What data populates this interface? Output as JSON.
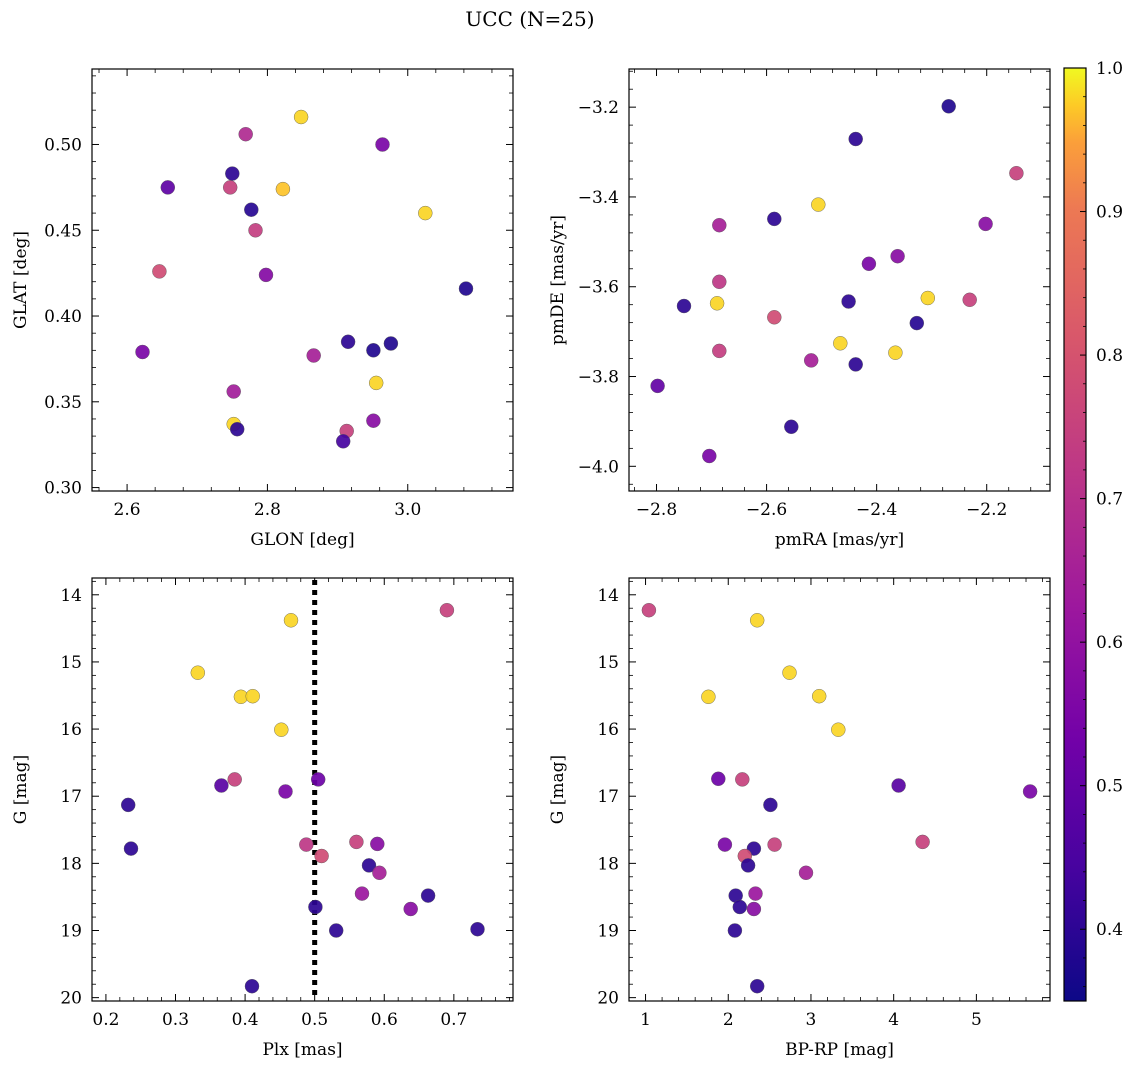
{
  "figure": {
    "title": "UCC (N=25)"
  },
  "colorbar": {
    "min": 0.35,
    "max": 1.0,
    "ticks": [
      0.4,
      0.5,
      0.6,
      0.7,
      0.8,
      0.9,
      1.0
    ],
    "tick_labels": [
      "0.4",
      "0.5",
      "0.6",
      "0.7",
      "0.8",
      "0.9",
      "1.0"
    ],
    "colormap": "plasma"
  },
  "chart_data": [
    {
      "type": "scatter",
      "id": "glon-glat",
      "xlabel": "GLON [deg]",
      "ylabel": "GLAT [deg]",
      "xlim": [
        2.55,
        3.15
      ],
      "ylim": [
        0.298,
        0.544
      ],
      "xticks": [
        2.6,
        2.8,
        3.0
      ],
      "xtick_labels": [
        "2.6",
        "2.8",
        "3.0"
      ],
      "yticks": [
        0.3,
        0.35,
        0.4,
        0.45,
        0.5
      ],
      "ytick_labels": [
        "0.30",
        "0.35",
        "0.40",
        "0.45",
        "0.50"
      ],
      "y_inverted": false,
      "points": [
        {
          "x": 2.848,
          "y": 0.516,
          "c": 0.98
        },
        {
          "x": 2.769,
          "y": 0.506,
          "c": 0.68
        },
        {
          "x": 2.964,
          "y": 0.5,
          "c": 0.55
        },
        {
          "x": 2.75,
          "y": 0.483,
          "c": 0.4
        },
        {
          "x": 2.658,
          "y": 0.475,
          "c": 0.49
        },
        {
          "x": 2.747,
          "y": 0.475,
          "c": 0.75
        },
        {
          "x": 2.822,
          "y": 0.474,
          "c": 0.97
        },
        {
          "x": 2.777,
          "y": 0.462,
          "c": 0.39
        },
        {
          "x": 3.025,
          "y": 0.46,
          "c": 0.98
        },
        {
          "x": 2.783,
          "y": 0.45,
          "c": 0.74
        },
        {
          "x": 2.646,
          "y": 0.426,
          "c": 0.78
        },
        {
          "x": 2.798,
          "y": 0.424,
          "c": 0.57
        },
        {
          "x": 3.083,
          "y": 0.416,
          "c": 0.38
        },
        {
          "x": 2.915,
          "y": 0.385,
          "c": 0.4
        },
        {
          "x": 2.976,
          "y": 0.384,
          "c": 0.38
        },
        {
          "x": 2.622,
          "y": 0.379,
          "c": 0.55
        },
        {
          "x": 2.951,
          "y": 0.38,
          "c": 0.38
        },
        {
          "x": 2.866,
          "y": 0.377,
          "c": 0.65
        },
        {
          "x": 2.955,
          "y": 0.361,
          "c": 0.98
        },
        {
          "x": 2.752,
          "y": 0.356,
          "c": 0.64
        },
        {
          "x": 2.951,
          "y": 0.339,
          "c": 0.58
        },
        {
          "x": 2.752,
          "y": 0.337,
          "c": 0.98
        },
        {
          "x": 2.757,
          "y": 0.334,
          "c": 0.4
        },
        {
          "x": 2.913,
          "y": 0.333,
          "c": 0.75
        },
        {
          "x": 2.908,
          "y": 0.327,
          "c": 0.44
        }
      ]
    },
    {
      "type": "scatter",
      "id": "pmra-pmde",
      "xlabel": "pmRA [mas/yr]",
      "ylabel": "pmDE [mas/yr]",
      "xlim": [
        -2.85,
        -2.085
      ],
      "ylim": [
        -4.055,
        -3.115
      ],
      "xticks": [
        -2.8,
        -2.6,
        -2.4,
        -2.2
      ],
      "xtick_labels": [
        "−2.8",
        "−2.6",
        "−2.4",
        "−2.2"
      ],
      "yticks": [
        -4.0,
        -3.8,
        -3.6,
        -3.4,
        -3.2
      ],
      "ytick_labels": [
        "−4.0",
        "−3.8",
        "−3.6",
        "−3.4",
        "−3.2"
      ],
      "y_inverted": false,
      "points": [
        {
          "x": -2.269,
          "y": -3.198,
          "c": 0.38
        },
        {
          "x": -2.438,
          "y": -3.271,
          "c": 0.4
        },
        {
          "x": -2.146,
          "y": -3.347,
          "c": 0.75
        },
        {
          "x": -2.506,
          "y": -3.417,
          "c": 0.98
        },
        {
          "x": -2.586,
          "y": -3.449,
          "c": 0.4
        },
        {
          "x": -2.686,
          "y": -3.463,
          "c": 0.65
        },
        {
          "x": -2.202,
          "y": -3.46,
          "c": 0.58
        },
        {
          "x": -2.362,
          "y": -3.532,
          "c": 0.58
        },
        {
          "x": -2.414,
          "y": -3.549,
          "c": 0.55
        },
        {
          "x": -2.686,
          "y": -3.589,
          "c": 0.72
        },
        {
          "x": -2.307,
          "y": -3.625,
          "c": 0.98
        },
        {
          "x": -2.231,
          "y": -3.629,
          "c": 0.75
        },
        {
          "x": -2.451,
          "y": -3.633,
          "c": 0.4
        },
        {
          "x": -2.69,
          "y": -3.637,
          "c": 0.98
        },
        {
          "x": -2.75,
          "y": -3.643,
          "c": 0.4
        },
        {
          "x": -2.586,
          "y": -3.668,
          "c": 0.78
        },
        {
          "x": -2.327,
          "y": -3.681,
          "c": 0.39
        },
        {
          "x": -2.466,
          "y": -3.726,
          "c": 0.98
        },
        {
          "x": -2.686,
          "y": -3.743,
          "c": 0.74
        },
        {
          "x": -2.366,
          "y": -3.747,
          "c": 0.98
        },
        {
          "x": -2.519,
          "y": -3.764,
          "c": 0.65
        },
        {
          "x": -2.438,
          "y": -3.773,
          "c": 0.4
        },
        {
          "x": -2.798,
          "y": -3.821,
          "c": 0.5
        },
        {
          "x": -2.555,
          "y": -3.912,
          "c": 0.4
        },
        {
          "x": -2.704,
          "y": -3.977,
          "c": 0.55
        }
      ]
    },
    {
      "type": "scatter",
      "id": "plx-g",
      "xlabel": "Plx [mas]",
      "ylabel": "G [mag]",
      "xlim": [
        0.18,
        0.785
      ],
      "ylim": [
        20.05,
        13.75
      ],
      "xticks": [
        0.2,
        0.3,
        0.4,
        0.5,
        0.6,
        0.7
      ],
      "xtick_labels": [
        "0.2",
        "0.3",
        "0.4",
        "0.5",
        "0.6",
        "0.7"
      ],
      "yticks": [
        14,
        15,
        16,
        17,
        18,
        19,
        20
      ],
      "ytick_labels": [
        "14",
        "15",
        "16",
        "17",
        "18",
        "19",
        "20"
      ],
      "y_inverted": true,
      "vline": {
        "x": 0.5,
        "style": "dotted"
      },
      "points": [
        {
          "x": 0.69,
          "y": 14.23,
          "c": 0.75
        },
        {
          "x": 0.466,
          "y": 14.38,
          "c": 0.98
        },
        {
          "x": 0.332,
          "y": 15.16,
          "c": 0.98
        },
        {
          "x": 0.394,
          "y": 15.52,
          "c": 0.98
        },
        {
          "x": 0.411,
          "y": 15.51,
          "c": 0.98
        },
        {
          "x": 0.452,
          "y": 16.01,
          "c": 0.98
        },
        {
          "x": 0.385,
          "y": 16.75,
          "c": 0.75
        },
        {
          "x": 0.505,
          "y": 16.75,
          "c": 0.52
        },
        {
          "x": 0.366,
          "y": 16.84,
          "c": 0.48
        },
        {
          "x": 0.458,
          "y": 16.93,
          "c": 0.55
        },
        {
          "x": 0.232,
          "y": 17.13,
          "c": 0.4
        },
        {
          "x": 0.488,
          "y": 17.72,
          "c": 0.72
        },
        {
          "x": 0.56,
          "y": 17.68,
          "c": 0.75
        },
        {
          "x": 0.59,
          "y": 17.71,
          "c": 0.58
        },
        {
          "x": 0.236,
          "y": 17.78,
          "c": 0.4
        },
        {
          "x": 0.51,
          "y": 17.89,
          "c": 0.78
        },
        {
          "x": 0.578,
          "y": 18.03,
          "c": 0.4
        },
        {
          "x": 0.593,
          "y": 18.14,
          "c": 0.65
        },
        {
          "x": 0.568,
          "y": 18.45,
          "c": 0.62
        },
        {
          "x": 0.663,
          "y": 18.48,
          "c": 0.4
        },
        {
          "x": 0.501,
          "y": 18.65,
          "c": 0.4
        },
        {
          "x": 0.638,
          "y": 18.68,
          "c": 0.58
        },
        {
          "x": 0.531,
          "y": 19.0,
          "c": 0.4
        },
        {
          "x": 0.734,
          "y": 18.98,
          "c": 0.4
        },
        {
          "x": 0.41,
          "y": 19.83,
          "c": 0.4
        }
      ]
    },
    {
      "type": "scatter",
      "id": "bprp-g",
      "xlabel": "BP-RP [mag]",
      "ylabel": "G [mag]",
      "xlim": [
        0.8,
        5.89
      ],
      "ylim": [
        20.05,
        13.75
      ],
      "xticks": [
        1,
        2,
        3,
        4,
        5
      ],
      "xtick_labels": [
        "1",
        "2",
        "3",
        "4",
        "5"
      ],
      "yticks": [
        14,
        15,
        16,
        17,
        18,
        19,
        20
      ],
      "ytick_labels": [
        "14",
        "15",
        "16",
        "17",
        "18",
        "19",
        "20"
      ],
      "y_inverted": true,
      "points": [
        {
          "x": 1.04,
          "y": 14.23,
          "c": 0.75
        },
        {
          "x": 2.35,
          "y": 14.38,
          "c": 0.98
        },
        {
          "x": 2.74,
          "y": 15.16,
          "c": 0.98
        },
        {
          "x": 1.76,
          "y": 15.52,
          "c": 0.98
        },
        {
          "x": 3.1,
          "y": 15.51,
          "c": 0.98
        },
        {
          "x": 3.33,
          "y": 16.01,
          "c": 0.98
        },
        {
          "x": 1.88,
          "y": 16.74,
          "c": 0.52
        },
        {
          "x": 2.17,
          "y": 16.75,
          "c": 0.75
        },
        {
          "x": 4.06,
          "y": 16.84,
          "c": 0.48
        },
        {
          "x": 5.65,
          "y": 16.93,
          "c": 0.55
        },
        {
          "x": 2.51,
          "y": 17.13,
          "c": 0.4
        },
        {
          "x": 1.96,
          "y": 17.72,
          "c": 0.55
        },
        {
          "x": 2.56,
          "y": 17.72,
          "c": 0.75
        },
        {
          "x": 4.35,
          "y": 17.68,
          "c": 0.75
        },
        {
          "x": 2.31,
          "y": 17.78,
          "c": 0.4
        },
        {
          "x": 2.2,
          "y": 17.89,
          "c": 0.78
        },
        {
          "x": 2.24,
          "y": 18.03,
          "c": 0.4
        },
        {
          "x": 2.94,
          "y": 18.14,
          "c": 0.65
        },
        {
          "x": 2.33,
          "y": 18.45,
          "c": 0.62
        },
        {
          "x": 2.09,
          "y": 18.48,
          "c": 0.4
        },
        {
          "x": 2.14,
          "y": 18.65,
          "c": 0.4
        },
        {
          "x": 2.31,
          "y": 18.68,
          "c": 0.58
        },
        {
          "x": 2.08,
          "y": 19.0,
          "c": 0.4
        },
        {
          "x": 2.35,
          "y": 19.83,
          "c": 0.4
        }
      ]
    }
  ]
}
